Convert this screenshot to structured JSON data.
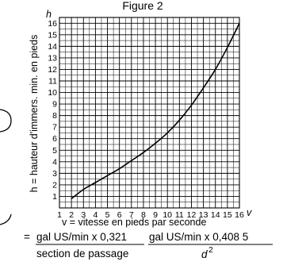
{
  "chart_data": {
    "type": "line",
    "title": "Figure 2",
    "ylabel_symbol": "h",
    "ylabel_text": "h = hauteur d'immers. min. en pieds",
    "xlabel_symbol": "v",
    "xlabel_text": "v = vitesse en pieds par seconde",
    "x_ticks": [
      "1",
      "2",
      "3",
      "4",
      "5",
      "6",
      "7",
      "8",
      "9",
      "10",
      "11",
      "12",
      "13",
      "14",
      "15",
      "16"
    ],
    "y_ticks": [
      "1",
      "2",
      "3",
      "4",
      "5",
      "6",
      "7",
      "8",
      "9",
      "10",
      "11",
      "12",
      "13",
      "14",
      "15",
      "16"
    ],
    "xlim": [
      1,
      16
    ],
    "ylim": [
      0,
      16.5
    ],
    "grid": true,
    "series": [
      {
        "x": [
          2,
          3,
          4,
          5,
          6,
          7,
          8,
          9,
          10,
          11,
          12,
          13,
          14,
          15,
          16
        ],
        "y": [
          0.8,
          1.6,
          2.2,
          2.8,
          3.4,
          4.1,
          4.8,
          5.6,
          6.5,
          7.6,
          8.9,
          10.4,
          12.0,
          13.9,
          16.0
        ]
      }
    ]
  },
  "formula": {
    "eq": "=",
    "num1": "gal US/min x 0,321",
    "den1": "section de passage",
    "num2": "gal US/min x 0,408 5",
    "den2_base": "d",
    "den2_exp": "2"
  }
}
